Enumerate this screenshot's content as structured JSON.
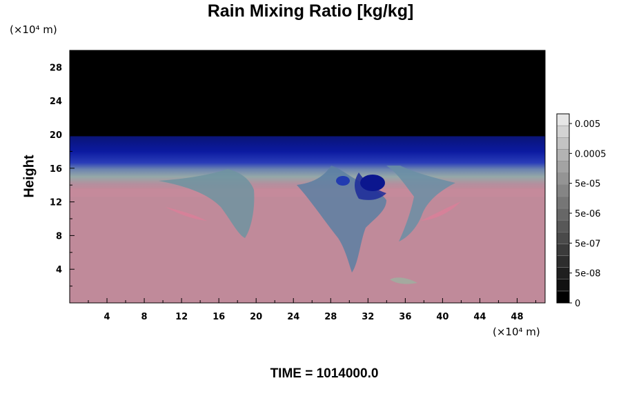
{
  "chart_data": {
    "type": "heatmap",
    "title": "Rain Mixing Ratio [kg/kg]",
    "ylabel": "Height",
    "xlabel": "",
    "x_unit_label": "(×10⁴ m)",
    "y_unit_label": "(×10⁴ m)",
    "footer": "TIME = 1014000.0",
    "xlim": [
      0,
      51
    ],
    "ylim": [
      0,
      30
    ],
    "x_ticks": [
      4,
      8,
      12,
      16,
      20,
      24,
      28,
      32,
      36,
      40,
      44,
      48
    ],
    "y_ticks": [
      4,
      8,
      12,
      16,
      20,
      24,
      28
    ],
    "x_tick_labels": [
      "4",
      "8",
      "12",
      "16",
      "20",
      "24",
      "28",
      "32",
      "36",
      "40",
      "44",
      "48"
    ],
    "y_tick_labels": [
      "4",
      "8",
      "12",
      "16",
      "20",
      "24",
      "28"
    ],
    "colorbar": {
      "levels": 16,
      "labels": [
        "0.005",
        "0.0005",
        "5e-05",
        "5e-06",
        "5e-07",
        "5e-08",
        "0"
      ],
      "colors": [
        "#000000",
        "#111111",
        "#1f1f1f",
        "#2d2d2d",
        "#3b3b3b",
        "#4a4a4a",
        "#585858",
        "#676767",
        "#767676",
        "#858585",
        "#949494",
        "#a3a3a3",
        "#b3b3b3",
        "#c3c3c3",
        "#d3d3d3",
        "#e6e6e6"
      ]
    },
    "field_layers": [
      {
        "name": "upper",
        "y_range": [
          19.8,
          30
        ],
        "color": "#000000"
      },
      {
        "name": "transition-dark",
        "y_range": [
          17,
          19.8
        ],
        "color": "#0a1590"
      },
      {
        "name": "transition-mid",
        "y_range": [
          15.5,
          17
        ],
        "color": "#3a4fb0"
      },
      {
        "name": "transition-light",
        "y_range": [
          13.6,
          15.5
        ],
        "color": "#8fa3a8"
      },
      {
        "name": "lower",
        "y_range": [
          0,
          13.6
        ],
        "color": "#c08a9a"
      }
    ],
    "plumes_x": [
      18,
      31,
      35
    ]
  }
}
